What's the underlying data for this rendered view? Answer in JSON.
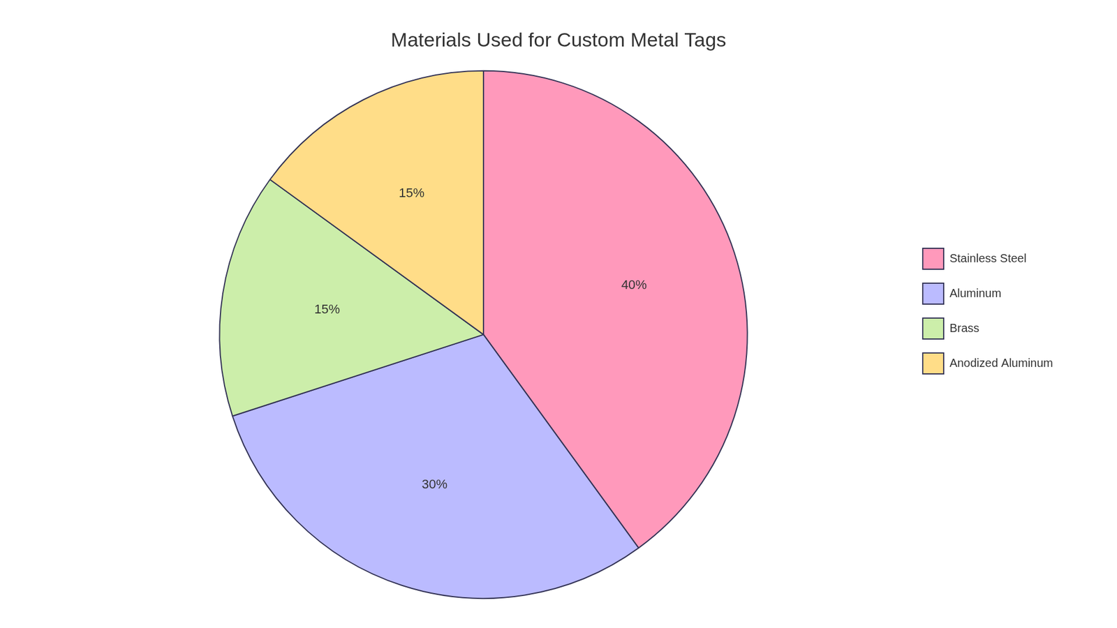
{
  "chart_data": {
    "type": "pie",
    "title": "Materials Used for Custom Metal Tags",
    "categories": [
      "Stainless Steel",
      "Aluminum",
      "Brass",
      "Anodized Aluminum"
    ],
    "values": [
      40,
      30,
      15,
      15
    ],
    "value_labels": [
      "40%",
      "30%",
      "15%",
      "15%"
    ],
    "colors": [
      "#FF99BB",
      "#BBBBFF",
      "#CCEEAA",
      "#FFDD88"
    ],
    "data_labels": true,
    "legend": "right"
  }
}
